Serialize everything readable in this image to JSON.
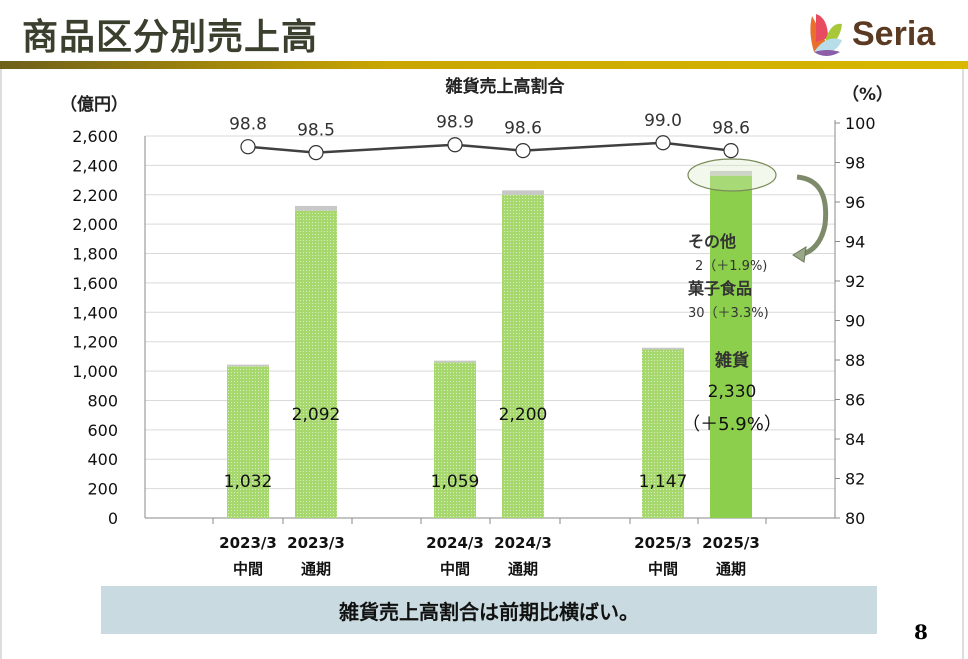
{
  "header": {
    "title": "商品区分別売上高",
    "logo_text": "Seria"
  },
  "chart_data": {
    "type": "bar",
    "title": "雑貨売上高割合",
    "ylabel": "（億円）",
    "y2label": "（%）",
    "ylim": [
      0,
      2600
    ],
    "yticks": [
      0,
      200,
      400,
      600,
      800,
      1000,
      1200,
      1400,
      1600,
      1800,
      2000,
      2200,
      2400,
      2600
    ],
    "y2lim": [
      80,
      100
    ],
    "y2ticks": [
      80,
      82,
      84,
      86,
      88,
      90,
      92,
      94,
      96,
      98,
      100
    ],
    "categories": [
      [
        "2023/3",
        "中間"
      ],
      [
        "2023/3",
        "通期"
      ],
      [
        "2024/3",
        "中間"
      ],
      [
        "2024/3",
        "通期"
      ],
      [
        "2025/3",
        "中間"
      ],
      [
        "2025/3",
        "通期"
      ]
    ],
    "series": [
      {
        "name": "雑貨",
        "values": [
          1032,
          2092,
          1059,
          2200,
          1147,
          2330
        ],
        "labels": [
          "1,032",
          "2,092",
          "1,059",
          "2,200",
          "1,147",
          "2,330"
        ]
      },
      {
        "name": "菓子食品・その他",
        "values": [
          12,
          32,
          12,
          30,
          12,
          32
        ]
      },
      {
        "name": "雑貨売上高割合",
        "type": "line",
        "values": [
          98.8,
          98.5,
          98.9,
          98.6,
          99.0,
          98.6
        ],
        "labels": [
          "98.8",
          "98.5",
          "98.9",
          "98.6",
          "99.0",
          "98.6"
        ]
      }
    ],
    "annotations": {
      "other_label": "その他",
      "other_value": "2（＋1.9%)",
      "snack_label": "菓子食品",
      "snack_value": "30（＋3.3%)",
      "goods_label": "雑貨",
      "goods_value": "2,330",
      "goods_growth": "（＋5.9%）"
    },
    "colors": {
      "bar": "#a6d86e",
      "bar_highlight": "#8bcf4c",
      "other": "#c8c8c8",
      "line": "#404040"
    }
  },
  "footer": {
    "banner": "雑貨売上高割合は前期比横ばい。",
    "page_number": "8"
  }
}
